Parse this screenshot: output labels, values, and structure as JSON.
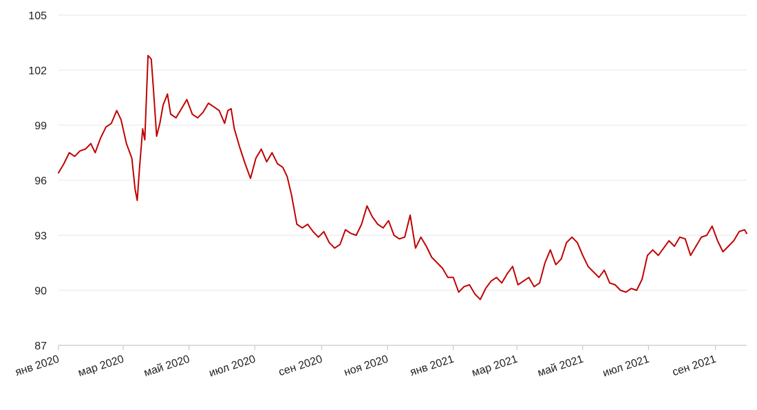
{
  "chart_data": {
    "type": "line",
    "title": "",
    "xlabel": "",
    "ylabel": "",
    "ylim": [
      87,
      105
    ],
    "yticks": [
      "105",
      "102",
      "99",
      "96",
      "93",
      "90",
      "87"
    ],
    "ytick_values": [
      105,
      102,
      99,
      96,
      93,
      90,
      87
    ],
    "xlim": [
      "2020-01-01",
      "2021-09-30"
    ],
    "xticks": [
      "янв 2020",
      "мар 2020",
      "май 2020",
      "июл 2020",
      "сен 2020",
      "ноя 2020",
      "янв 2021",
      "мар 2021",
      "май 2021",
      "июл 2021",
      "сен 2021"
    ],
    "xtick_dates": [
      "2020-01-01",
      "2020-03-01",
      "2020-05-01",
      "2020-07-01",
      "2020-09-01",
      "2020-11-01",
      "2021-01-01",
      "2021-03-01",
      "2021-05-01",
      "2021-07-01",
      "2021-09-01"
    ],
    "grid": "horizontal",
    "series": [
      {
        "color": "#c00000",
        "points": [
          [
            "2020-01-01",
            96.4
          ],
          [
            "2020-01-06",
            96.9
          ],
          [
            "2020-01-11",
            97.5
          ],
          [
            "2020-01-16",
            97.3
          ],
          [
            "2020-01-21",
            97.6
          ],
          [
            "2020-01-26",
            97.7
          ],
          [
            "2020-01-31",
            98.0
          ],
          [
            "2020-02-04",
            97.5
          ],
          [
            "2020-02-09",
            98.3
          ],
          [
            "2020-02-14",
            98.9
          ],
          [
            "2020-02-19",
            99.1
          ],
          [
            "2020-02-24",
            99.8
          ],
          [
            "2020-02-28",
            99.3
          ],
          [
            "2020-03-04",
            98.0
          ],
          [
            "2020-03-09",
            97.2
          ],
          [
            "2020-03-12",
            95.5
          ],
          [
            "2020-03-14",
            94.9
          ],
          [
            "2020-03-16",
            96.6
          ],
          [
            "2020-03-19",
            98.8
          ],
          [
            "2020-03-21",
            98.2
          ],
          [
            "2020-03-24",
            102.8
          ],
          [
            "2020-03-27",
            102.6
          ],
          [
            "2020-03-29",
            101.0
          ],
          [
            "2020-04-01",
            98.4
          ],
          [
            "2020-04-04",
            99.1
          ],
          [
            "2020-04-07",
            100.1
          ],
          [
            "2020-04-11",
            100.7
          ],
          [
            "2020-04-14",
            99.6
          ],
          [
            "2020-04-19",
            99.4
          ],
          [
            "2020-04-24",
            99.9
          ],
          [
            "2020-04-29",
            100.4
          ],
          [
            "2020-05-04",
            99.6
          ],
          [
            "2020-05-09",
            99.4
          ],
          [
            "2020-05-14",
            99.7
          ],
          [
            "2020-05-19",
            100.2
          ],
          [
            "2020-05-24",
            100.0
          ],
          [
            "2020-05-29",
            99.8
          ],
          [
            "2020-06-03",
            99.1
          ],
          [
            "2020-06-06",
            99.8
          ],
          [
            "2020-06-09",
            99.9
          ],
          [
            "2020-06-12",
            98.8
          ],
          [
            "2020-06-17",
            97.8
          ],
          [
            "2020-06-22",
            96.9
          ],
          [
            "2020-06-27",
            96.1
          ],
          [
            "2020-07-02",
            97.2
          ],
          [
            "2020-07-07",
            97.7
          ],
          [
            "2020-07-12",
            97.0
          ],
          [
            "2020-07-17",
            97.5
          ],
          [
            "2020-07-22",
            96.9
          ],
          [
            "2020-07-27",
            96.7
          ],
          [
            "2020-07-31",
            96.2
          ],
          [
            "2020-08-04",
            95.2
          ],
          [
            "2020-08-09",
            93.6
          ],
          [
            "2020-08-14",
            93.4
          ],
          [
            "2020-08-19",
            93.6
          ],
          [
            "2020-08-24",
            93.2
          ],
          [
            "2020-08-29",
            92.9
          ],
          [
            "2020-09-03",
            93.2
          ],
          [
            "2020-09-08",
            92.6
          ],
          [
            "2020-09-13",
            92.3
          ],
          [
            "2020-09-18",
            92.5
          ],
          [
            "2020-09-23",
            93.3
          ],
          [
            "2020-09-28",
            93.1
          ],
          [
            "2020-10-03",
            93.0
          ],
          [
            "2020-10-08",
            93.6
          ],
          [
            "2020-10-13",
            94.6
          ],
          [
            "2020-10-18",
            94.0
          ],
          [
            "2020-10-23",
            93.6
          ],
          [
            "2020-10-28",
            93.4
          ],
          [
            "2020-11-02",
            93.8
          ],
          [
            "2020-11-07",
            93.0
          ],
          [
            "2020-11-12",
            92.8
          ],
          [
            "2020-11-17",
            92.9
          ],
          [
            "2020-11-22",
            94.1
          ],
          [
            "2020-11-27",
            92.3
          ],
          [
            "2020-12-02",
            92.9
          ],
          [
            "2020-12-07",
            92.4
          ],
          [
            "2020-12-12",
            91.8
          ],
          [
            "2020-12-17",
            91.5
          ],
          [
            "2020-12-22",
            91.2
          ],
          [
            "2020-12-27",
            90.7
          ],
          [
            "2021-01-01",
            90.7
          ],
          [
            "2021-01-06",
            89.9
          ],
          [
            "2021-01-11",
            90.2
          ],
          [
            "2021-01-16",
            90.3
          ],
          [
            "2021-01-21",
            89.8
          ],
          [
            "2021-01-26",
            89.5
          ],
          [
            "2021-01-31",
            90.1
          ],
          [
            "2021-02-05",
            90.5
          ],
          [
            "2021-02-10",
            90.7
          ],
          [
            "2021-02-15",
            90.4
          ],
          [
            "2021-02-20",
            90.9
          ],
          [
            "2021-02-25",
            91.3
          ],
          [
            "2021-03-02",
            90.3
          ],
          [
            "2021-03-07",
            90.5
          ],
          [
            "2021-03-12",
            90.7
          ],
          [
            "2021-03-17",
            90.2
          ],
          [
            "2021-03-22",
            90.4
          ],
          [
            "2021-03-27",
            91.5
          ],
          [
            "2021-04-01",
            92.2
          ],
          [
            "2021-04-06",
            91.4
          ],
          [
            "2021-04-11",
            91.7
          ],
          [
            "2021-04-16",
            92.6
          ],
          [
            "2021-04-21",
            92.9
          ],
          [
            "2021-04-26",
            92.6
          ],
          [
            "2021-05-01",
            91.9
          ],
          [
            "2021-05-06",
            91.3
          ],
          [
            "2021-05-11",
            91.0
          ],
          [
            "2021-05-16",
            90.7
          ],
          [
            "2021-05-21",
            91.1
          ],
          [
            "2021-05-26",
            90.4
          ],
          [
            "2021-05-31",
            90.3
          ],
          [
            "2021-06-05",
            90.0
          ],
          [
            "2021-06-10",
            89.9
          ],
          [
            "2021-06-15",
            90.1
          ],
          [
            "2021-06-20",
            90.0
          ],
          [
            "2021-06-25",
            90.6
          ],
          [
            "2021-06-30",
            91.9
          ],
          [
            "2021-07-05",
            92.2
          ],
          [
            "2021-07-10",
            91.9
          ],
          [
            "2021-07-15",
            92.3
          ],
          [
            "2021-07-20",
            92.7
          ],
          [
            "2021-07-25",
            92.4
          ],
          [
            "2021-07-30",
            92.9
          ],
          [
            "2021-08-04",
            92.8
          ],
          [
            "2021-08-09",
            91.9
          ],
          [
            "2021-08-14",
            92.4
          ],
          [
            "2021-08-19",
            92.9
          ],
          [
            "2021-08-24",
            93.0
          ],
          [
            "2021-08-29",
            93.5
          ],
          [
            "2021-09-03",
            92.7
          ],
          [
            "2021-09-08",
            92.1
          ],
          [
            "2021-09-13",
            92.4
          ],
          [
            "2021-09-18",
            92.7
          ],
          [
            "2021-09-23",
            93.2
          ],
          [
            "2021-09-28",
            93.3
          ],
          [
            "2021-09-30",
            93.1
          ]
        ]
      }
    ]
  }
}
